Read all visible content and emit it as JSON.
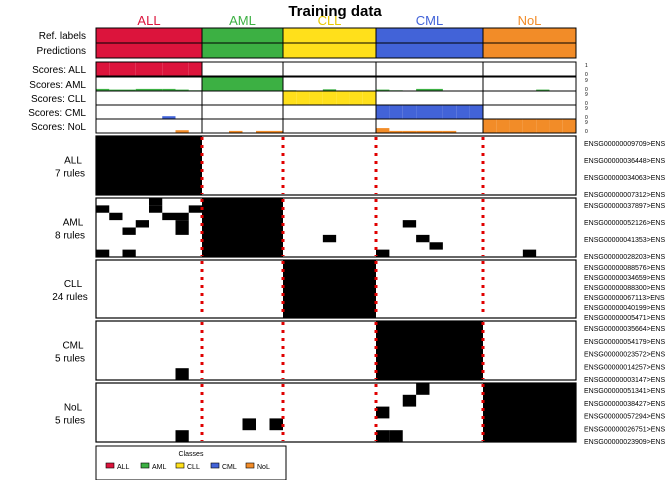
{
  "chart_data": {
    "type": "heatmap",
    "title": "Training data",
    "classes": [
      "ALL",
      "AML",
      "CLL",
      "CML",
      "NoL"
    ],
    "class_colors": {
      "ALL": "#DC143C",
      "AML": "#3CB043",
      "CLL": "#FFE01B",
      "CML": "#4263D8",
      "NoL": "#F28C28"
    },
    "class_label_colors": {
      "ALL": "#DC143C",
      "AML": "#3CB043",
      "CLL": "#E8C800",
      "CML": "#4263D8",
      "NoL": "#F28C28"
    },
    "samples_per_class": [
      8,
      6,
      7,
      8,
      7
    ],
    "row_labels": {
      "ref": "Ref. labels",
      "pred": "Predictions"
    },
    "score_rows": [
      {
        "label": "Scores: ALL",
        "class": "ALL",
        "max_tick": "1",
        "min_tick": "0"
      },
      {
        "label": "Scores: AML",
        "class": "AML",
        "max_tick": "9",
        "min_tick": "0"
      },
      {
        "label": "Scores: CLL",
        "class": "CLL",
        "max_tick": "9",
        "min_tick": "0"
      },
      {
        "label": "Scores: CML",
        "class": "CML",
        "max_tick": "9",
        "min_tick": "0"
      },
      {
        "label": "Scores: NoL",
        "class": "NoL",
        "max_tick": "9",
        "min_tick": "0"
      }
    ],
    "scores": [
      [
        1,
        1,
        1,
        1,
        1,
        1,
        1,
        1,
        0,
        0,
        0,
        0,
        0,
        0,
        0,
        0,
        0,
        0,
        0,
        0,
        0,
        0,
        0,
        0,
        0,
        0,
        0,
        0,
        0,
        0,
        0,
        0,
        0,
        0,
        0,
        0
      ],
      [
        0.15,
        0.1,
        0.1,
        0.15,
        0.15,
        0.15,
        0.1,
        0.05,
        1,
        1,
        1,
        1,
        1,
        1,
        0.05,
        0,
        0,
        0.12,
        0,
        0,
        0,
        0.1,
        0.05,
        0,
        0.15,
        0.15,
        0,
        0,
        0,
        0,
        0,
        0,
        0,
        0.1,
        0,
        0
      ],
      [
        0,
        0,
        0,
        0,
        0,
        0,
        0,
        0,
        0,
        0,
        0,
        0,
        0,
        0,
        1,
        1,
        1,
        1,
        1,
        1,
        1,
        0,
        0,
        0,
        0,
        0,
        0,
        0,
        0,
        0,
        0,
        0,
        0,
        0,
        0,
        0
      ],
      [
        0,
        0,
        0,
        0,
        0,
        0.2,
        0,
        0,
        0,
        0,
        0,
        0,
        0,
        0,
        0,
        0,
        0,
        0,
        0,
        0,
        0,
        1,
        1,
        1,
        1,
        1,
        1,
        1,
        1,
        0,
        0,
        0,
        0,
        0,
        0,
        0
      ],
      [
        0,
        0,
        0,
        0,
        0,
        0,
        0.2,
        0,
        0,
        0,
        0.15,
        0,
        0.15,
        0.15,
        0,
        0,
        0,
        0,
        0,
        0,
        0,
        0.35,
        0.15,
        0.15,
        0.15,
        0.15,
        0.15,
        0,
        0,
        1,
        1,
        1,
        1,
        1,
        1,
        1
      ]
    ],
    "rule_blocks": [
      {
        "class": "ALL",
        "label": "ALL",
        "count_label": "7 rules",
        "n_rows": 7,
        "rule_ids": [
          "ENSG00000009709>ENS",
          "ENSG00000036448>ENS",
          "ENSG00000034063>ENS",
          "ENSG00000007312>ENS"
        ],
        "extra_cells": []
      },
      {
        "class": "AML",
        "label": "AML",
        "count_label": "8 rules",
        "n_rows": 8,
        "rule_ids": [
          "ENSG00000037897>ENS",
          "ENSG00000052126>ENS",
          "ENSG00000041353>ENS",
          "ENSG00000028203>ENS"
        ],
        "extra_cells": [
          [
            0,
            4
          ],
          [
            1,
            0
          ],
          [
            1,
            4
          ],
          [
            1,
            7
          ],
          [
            2,
            1
          ],
          [
            2,
            5
          ],
          [
            2,
            6
          ],
          [
            3,
            3
          ],
          [
            3,
            6
          ],
          [
            4,
            2
          ],
          [
            4,
            6
          ],
          [
            5,
            17
          ],
          [
            6,
            25
          ],
          [
            3,
            23
          ],
          [
            5,
            24
          ],
          [
            7,
            0
          ],
          [
            7,
            2
          ],
          [
            7,
            21
          ],
          [
            7,
            32
          ]
        ]
      },
      {
        "class": "CLL",
        "label": "CLL",
        "count_label": "24 rules",
        "n_rows": 24,
        "rule_ids": [
          "ENSG00000088576>ENS",
          "ENSG00000034659>ENS",
          "ENSG00000088300>ENS",
          "ENSG00000067113>ENS",
          "ENSG00000040199>ENS",
          "ENSG00000005471>ENS"
        ],
        "extra_cells": []
      },
      {
        "class": "CML",
        "label": "CML",
        "count_label": "5 rules",
        "n_rows": 5,
        "rule_ids": [
          "ENSG00000035664>ENS",
          "ENSG00000054179>ENS",
          "ENSG00000023572>ENS",
          "ENSG00000014257>ENS",
          "ENSG00000003147>ENS"
        ],
        "extra_cells": [
          [
            4,
            6
          ]
        ]
      },
      {
        "class": "NoL",
        "label": "NoL",
        "count_label": "5 rules",
        "n_rows": 5,
        "rule_ids": [
          "ENSG00000051341>ENS",
          "ENSG00000038427>ENS",
          "ENSG00000057294>ENS",
          "ENSG00000026751>ENS",
          "ENSG00000023909>ENS"
        ],
        "extra_cells": [
          [
            0,
            24
          ],
          [
            1,
            23
          ],
          [
            2,
            21
          ],
          [
            3,
            11
          ],
          [
            3,
            13
          ],
          [
            4,
            6
          ],
          [
            4,
            21
          ],
          [
            4,
            22
          ]
        ]
      }
    ],
    "legend": {
      "title": "Classes",
      "items": [
        "ALL",
        "AML",
        "CLL",
        "CML",
        "NoL"
      ]
    },
    "separator_color": "#E00000"
  }
}
